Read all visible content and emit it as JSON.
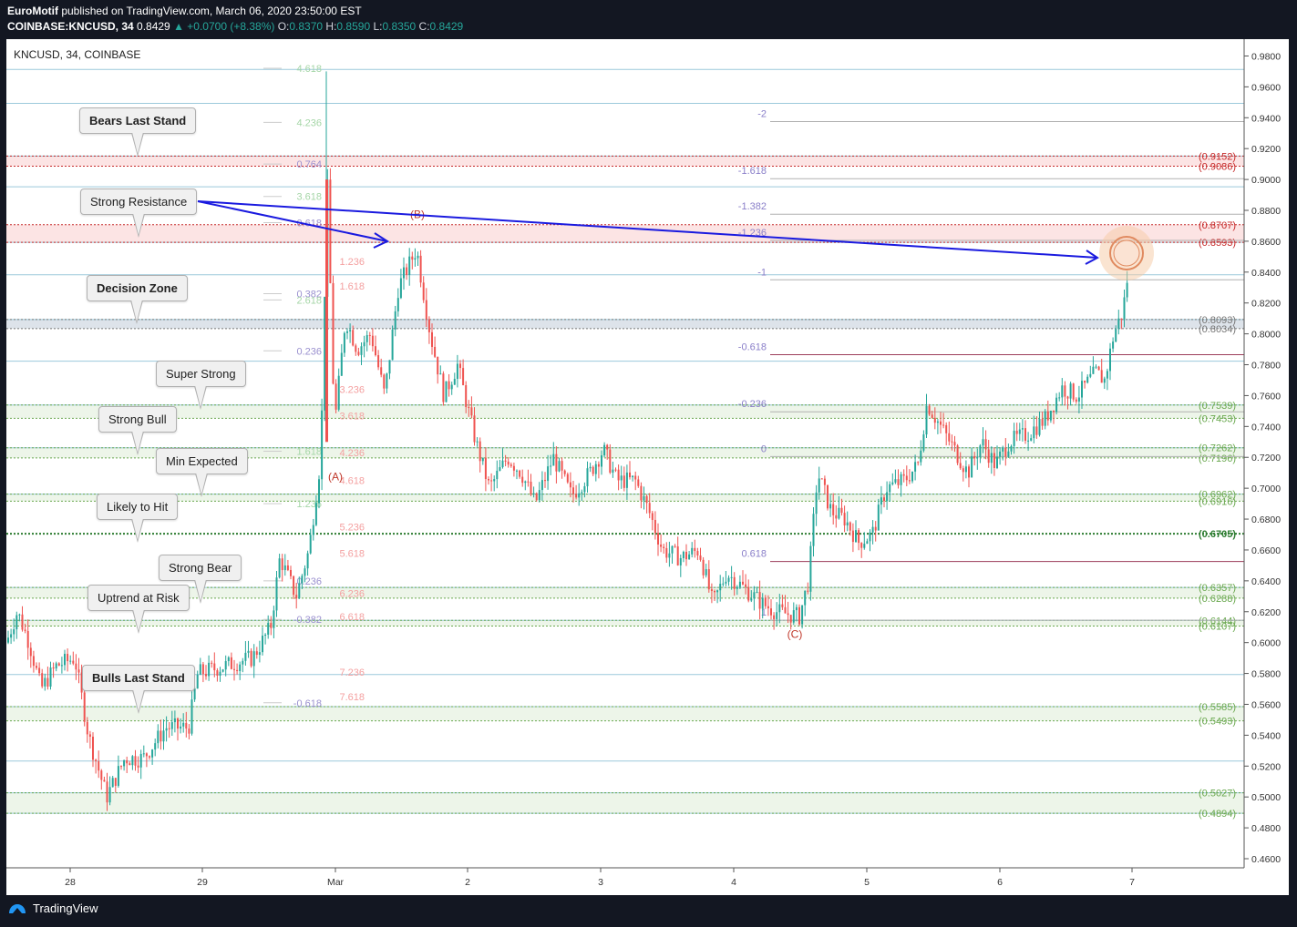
{
  "header": {
    "author": "EuroMotif",
    "published": " published on TradingView.com, March 06, 2020 23:50:00 EST",
    "symbol": "COINBASE:KNCUSD, 34",
    "last": "0.8429",
    "change": "▲ +0.0700 (+8.38%)",
    "o_label": "O:",
    "o": "0.8370",
    "h_label": "H:",
    "h": "0.8590",
    "l_label": "L:",
    "l": "0.8350",
    "c_label": "C:",
    "c": "0.8429"
  },
  "legend": "KNCUSD, 34, COINBASE",
  "footer": {
    "brand": "TradingView"
  },
  "colors": {
    "up": "#26a69a",
    "down": "#ef5350",
    "hline": "#7fb8d0",
    "resist": "#d32f2f",
    "support": "#6aa84f",
    "blue_arrow": "#1a1adf"
  },
  "callouts": [
    {
      "text": "Bears Last Stand",
      "bold": true
    },
    {
      "text": "Strong Resistance",
      "bold": false
    },
    {
      "text": "Decision Zone",
      "bold": true
    },
    {
      "text": "Super Strong",
      "bold": false
    },
    {
      "text": "Strong Bull",
      "bold": false
    },
    {
      "text": "Min Expected",
      "bold": false
    },
    {
      "text": "Likely to Hit",
      "bold": false
    },
    {
      "text": "Strong Bear",
      "bold": false
    },
    {
      "text": "Uptrend at Risk",
      "bold": false
    },
    {
      "text": "Bulls Last Stand",
      "bold": true
    }
  ],
  "chart_data": {
    "type": "candlestick",
    "title": "",
    "ylim": [
      0.46,
      0.985
    ],
    "y_ticks": [
      "0.9800",
      "0.9600",
      "0.9400",
      "0.9200",
      "0.9000",
      "0.8800",
      "0.8600",
      "0.8400",
      "0.8200",
      "0.8000",
      "0.7800",
      "0.7600",
      "0.7400",
      "0.7200",
      "0.7000",
      "0.6800",
      "0.6600",
      "0.6400",
      "0.6200",
      "0.6000",
      "0.5800",
      "0.5600",
      "0.5400",
      "0.5200",
      "0.5000",
      "0.4800",
      "0.4600"
    ],
    "x_ticks": [
      "28",
      "29",
      "Mar",
      "2",
      "3",
      "4",
      "5",
      "6",
      "7"
    ],
    "price_levels": [
      {
        "label": "(0.9152)",
        "value": 0.9152,
        "color": "resist"
      },
      {
        "label": "(0.9086)",
        "value": 0.9086,
        "color": "resist"
      },
      {
        "label": "(0.8707)",
        "value": 0.8707,
        "color": "resist"
      },
      {
        "label": "(0.8593)",
        "value": 0.8593,
        "color": "resist"
      },
      {
        "label": "(0.8093)",
        "value": 0.8093,
        "color": "neutral"
      },
      {
        "label": "(0.8034)",
        "value": 0.8034,
        "color": "neutral"
      },
      {
        "label": "(0.7539)",
        "value": 0.7539,
        "color": "support"
      },
      {
        "label": "(0.7453)",
        "value": 0.7453,
        "color": "support"
      },
      {
        "label": "(0.7262)",
        "value": 0.7262,
        "color": "support"
      },
      {
        "label": "(0.7196)",
        "value": 0.7196,
        "color": "support"
      },
      {
        "label": "(0.6962)",
        "value": 0.6962,
        "color": "support"
      },
      {
        "label": "(0.6916)",
        "value": 0.6916,
        "color": "support"
      },
      {
        "label": "(0.6705)",
        "value": 0.6705,
        "color": "support_bold"
      },
      {
        "label": "(0.6357)",
        "value": 0.6357,
        "color": "support"
      },
      {
        "label": "(0.6288)",
        "value": 0.6288,
        "color": "support"
      },
      {
        "label": "(0.6144)",
        "value": 0.6144,
        "color": "support"
      },
      {
        "label": "(0.6107)",
        "value": 0.6107,
        "color": "support"
      },
      {
        "label": "(0.5585)",
        "value": 0.5585,
        "color": "support"
      },
      {
        "label": "(0.5493)",
        "value": 0.5493,
        "color": "support"
      },
      {
        "label": "(0.5027)",
        "value": 0.5027,
        "color": "support"
      },
      {
        "label": "(0.4894)",
        "value": 0.4894,
        "color": "support"
      }
    ],
    "fib_left": [
      {
        "label": "4.618",
        "value": 0.972
      },
      {
        "label": "4.236",
        "value": 0.937
      },
      {
        "label": "0.764",
        "value": 0.91
      },
      {
        "label": "3.618",
        "value": 0.889
      },
      {
        "label": "0.618",
        "value": 0.872
      },
      {
        "label": "0.382",
        "value": 0.826
      },
      {
        "label": "2.618",
        "value": 0.822
      },
      {
        "label": "0.236",
        "value": 0.789
      },
      {
        "label": "1.618",
        "value": 0.724
      },
      {
        "label": "1.236",
        "value": 0.69
      },
      {
        "label": "0.236",
        "value": 0.64
      },
      {
        "label": "-0.382",
        "value": 0.615
      },
      {
        "label": "-0.618",
        "value": 0.561
      }
    ],
    "fib_c": [
      {
        "label": "1.236",
        "value": 0.847
      },
      {
        "label": "1.618",
        "value": 0.831
      },
      {
        "label": "3.236",
        "value": 0.764
      },
      {
        "label": "3.618",
        "value": 0.747
      },
      {
        "label": "4.236",
        "value": 0.723
      },
      {
        "label": "4.618",
        "value": 0.705
      },
      {
        "label": "5.236",
        "value": 0.675
      },
      {
        "label": "5.618",
        "value": 0.658
      },
      {
        "label": "6.236",
        "value": 0.632
      },
      {
        "label": "6.618",
        "value": 0.617
      },
      {
        "label": "7.236",
        "value": 0.581
      },
      {
        "label": "7.618",
        "value": 0.565
      }
    ],
    "fib_right": [
      {
        "label": "-2",
        "value": 0.9375
      },
      {
        "label": "-1.618",
        "value": 0.9005
      },
      {
        "label": "-1.382",
        "value": 0.8775
      },
      {
        "label": "-1.236",
        "value": 0.8605
      },
      {
        "label": "-1",
        "value": 0.835
      },
      {
        "label": "-0.618",
        "value": 0.7865
      },
      {
        "label": "-0.236",
        "value": 0.7495
      },
      {
        "label": "0",
        "value": 0.7205
      },
      {
        "label": "0.618",
        "value": 0.6525
      },
      {
        "label": "1",
        "value": 0.6145
      }
    ],
    "wave_labels": [
      {
        "label": "(A)",
        "value": 0.705
      },
      {
        "label": "(B)",
        "value": 0.875
      },
      {
        "label": "(C)",
        "value": 0.603
      }
    ]
  }
}
